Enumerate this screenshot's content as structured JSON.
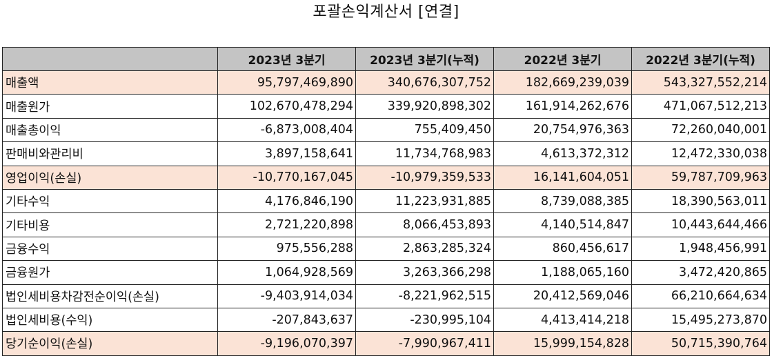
{
  "title": "포괄손익계산서 [연결]",
  "columns": [
    "",
    "2023년 3분기",
    "2023년 3분기(누적)",
    "2022년 3분기",
    "2022년 3분기(누적)"
  ],
  "highlight_color": "#fbe3d6",
  "header_color": "#c4c4c4",
  "rows": [
    {
      "label": "매출액",
      "highlight": true,
      "values": [
        "95,797,469,890",
        "340,676,307,752",
        "182,669,239,039",
        "543,327,552,214"
      ]
    },
    {
      "label": "매출원가",
      "highlight": false,
      "values": [
        "102,670,478,294",
        "339,920,898,302",
        "161,914,262,676",
        "471,067,512,213"
      ]
    },
    {
      "label": "매출총이익",
      "highlight": false,
      "values": [
        "-6,873,008,404",
        "755,409,450",
        "20,754,976,363",
        "72,260,040,001"
      ]
    },
    {
      "label": "판매비와관리비",
      "highlight": false,
      "values": [
        "3,897,158,641",
        "11,734,768,983",
        "4,613,372,312",
        "12,472,330,038"
      ]
    },
    {
      "label": "영업이익(손실)",
      "highlight": true,
      "values": [
        "-10,770,167,045",
        "-10,979,359,533",
        "16,141,604,051",
        "59,787,709,963"
      ]
    },
    {
      "label": "기타수익",
      "highlight": false,
      "values": [
        "4,176,846,190",
        "11,223,931,885",
        "8,739,088,385",
        "18,390,563,011"
      ]
    },
    {
      "label": "기타비용",
      "highlight": false,
      "values": [
        "2,721,220,898",
        "8,066,453,893",
        "4,140,514,847",
        "10,443,644,466"
      ]
    },
    {
      "label": "금융수익",
      "highlight": false,
      "values": [
        "975,556,288",
        "2,863,285,324",
        "860,456,617",
        "1,948,456,991"
      ]
    },
    {
      "label": "금융원가",
      "highlight": false,
      "values": [
        "1,064,928,569",
        "3,263,366,298",
        "1,188,065,160",
        "3,472,420,865"
      ]
    },
    {
      "label": "법인세비용차감전순이익(손실)",
      "highlight": false,
      "values": [
        "-9,403,914,034",
        "-8,221,962,515",
        "20,412,569,046",
        "66,210,664,634"
      ]
    },
    {
      "label": "법인세비용(수익)",
      "highlight": false,
      "values": [
        "-207,843,637",
        "-230,995,104",
        "4,413,414,218",
        "15,495,273,870"
      ]
    },
    {
      "label": "당기순이익(손실)",
      "highlight": true,
      "values": [
        "-9,196,070,397",
        "-7,990,967,411",
        "15,999,154,828",
        "50,715,390,764"
      ]
    }
  ]
}
